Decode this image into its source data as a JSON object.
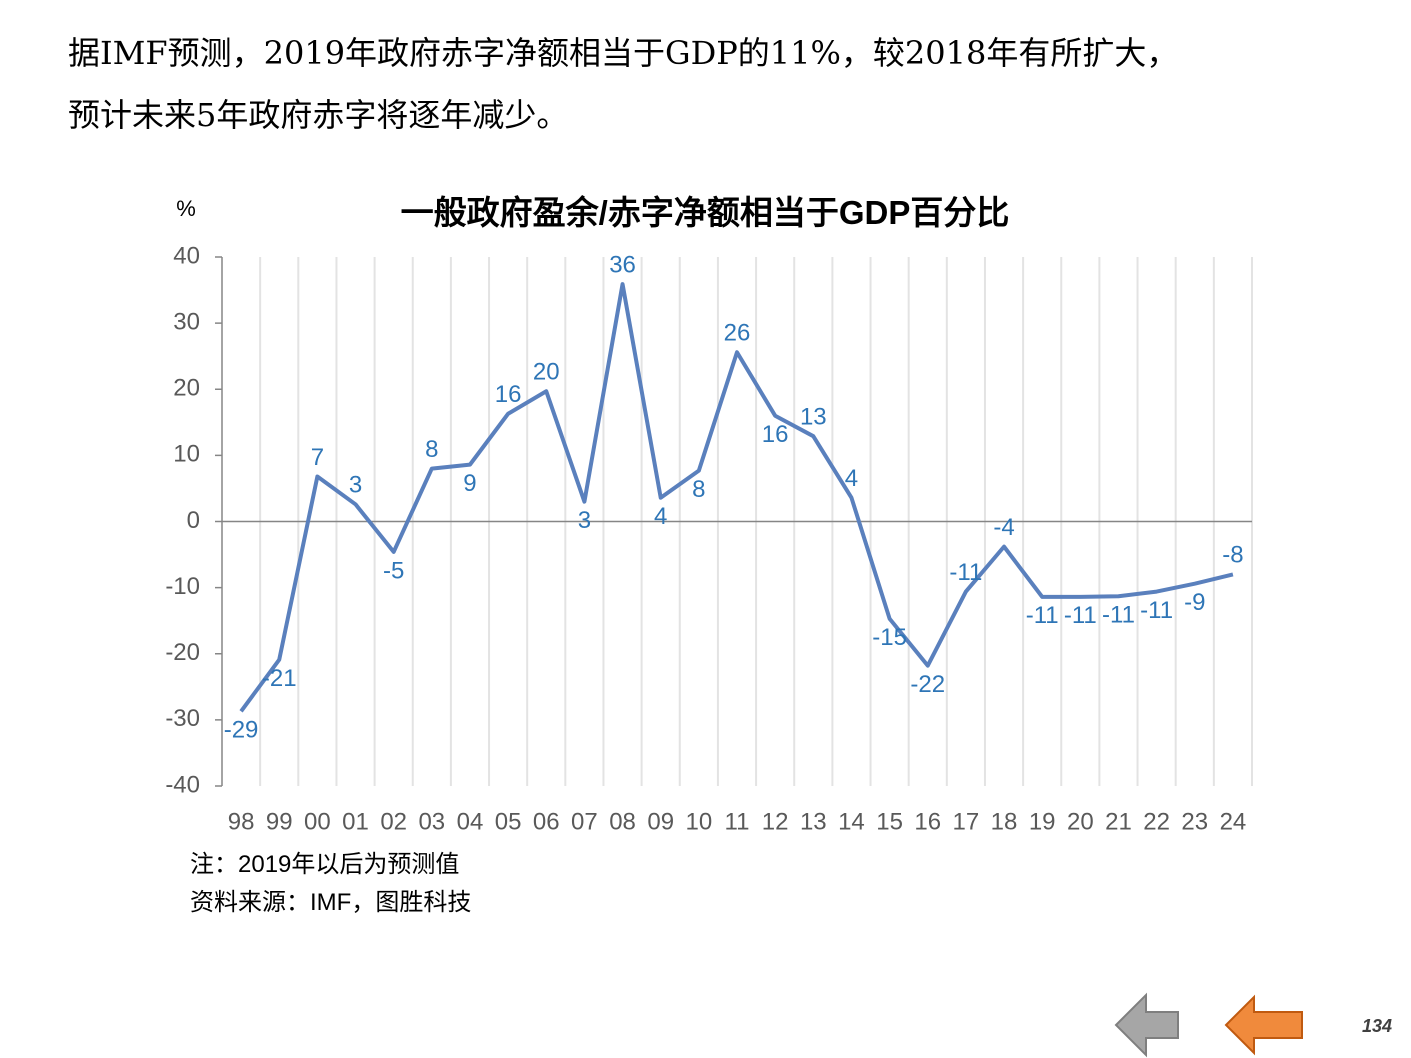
{
  "header": {
    "lines": [
      "据IMF预测，2019年政府赤字净额相当于GDP的11%，较2018年有所扩大，",
      "预计未来5年政府赤字将逐年减少。"
    ]
  },
  "chart_data": {
    "type": "line",
    "title": "一般政府盈余/赤字净额相当于GDP百分比",
    "y_label": "%",
    "categories": [
      "98",
      "99",
      "00",
      "01",
      "02",
      "03",
      "04",
      "05",
      "06",
      "07",
      "08",
      "09",
      "10",
      "11",
      "12",
      "13",
      "14",
      "15",
      "16",
      "17",
      "18",
      "19",
      "20",
      "21",
      "22",
      "23",
      "24"
    ],
    "series": [
      {
        "name": "一般政府盈余/赤字净额",
        "color": "#5a80bd",
        "values": [
          -28.7,
          -20.9,
          6.8,
          2.6,
          -4.6,
          8.0,
          8.6,
          16.3,
          19.7,
          3.0,
          35.9,
          3.6,
          7.7,
          25.6,
          16.0,
          12.9,
          3.6,
          -14.7,
          -21.8,
          -10.6,
          -3.8,
          -11.4,
          -11.4,
          -11.3,
          -10.6,
          -9.4,
          -8.0
        ],
        "value_labels": [
          "-29",
          "-21",
          "7",
          "3",
          "-5",
          "8",
          "9",
          "16",
          "20",
          "3",
          "36",
          "4",
          "8",
          "26",
          "16",
          "13",
          "4",
          "-15",
          "-22",
          "-11",
          "-4",
          "-11",
          "-11",
          "-11",
          "-11",
          "-9",
          "-8"
        ]
      }
    ],
    "ylim": [
      -40,
      40
    ],
    "yticks": [
      -40,
      -30,
      -20,
      -10,
      0,
      10,
      20,
      30,
      40
    ],
    "grid": true,
    "label_color": "#2e75b6"
  },
  "notes": [
    "注：2019年以后为预测值",
    "资料来源：IMF，图胜科技"
  ],
  "page_number": "134"
}
